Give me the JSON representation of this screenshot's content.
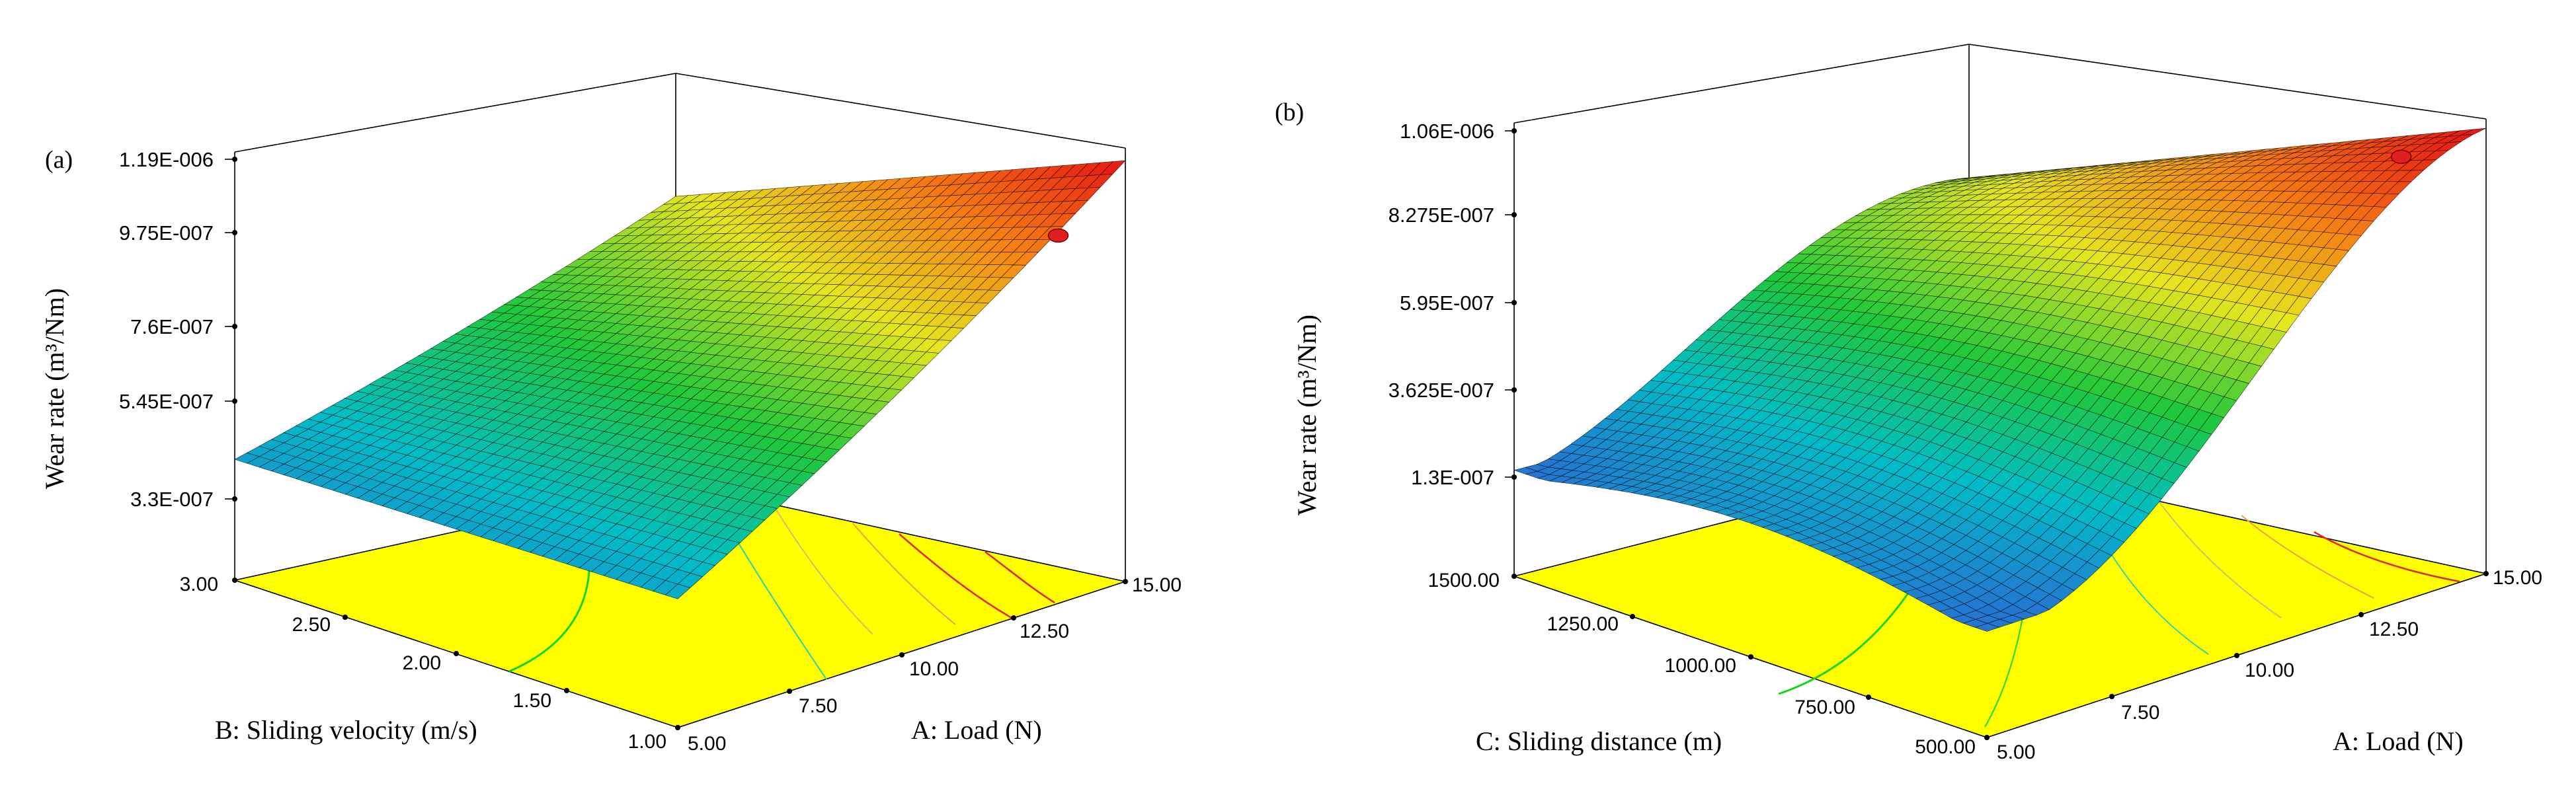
{
  "chart_data": [
    {
      "type": "surface3d",
      "panel_label": "(a)",
      "zlabel": "Wear rate (m³/Nm)",
      "xlabel": "A: Load (N)",
      "ylabel": "B: Sliding velocity (m/s)",
      "x_ticks": [
        "5.00",
        "7.50",
        "10.00",
        "12.50",
        "15.00"
      ],
      "y_ticks": [
        "1.00",
        "1.50",
        "2.00",
        "2.50",
        "3.00"
      ],
      "z_ticks": [
        "3.3E-007",
        "5.45E-007",
        "7.6E-007",
        "9.75E-007",
        "1.19E-006"
      ],
      "xlim": [
        5,
        15
      ],
      "ylim": [
        1,
        3
      ],
      "zlim": [
        3.3e-07,
        1.19e-06
      ],
      "corner_values": {
        "load_5_v_1": 4.5e-07,
        "load_15_v_1": 1.19e-06,
        "load_5_v_3": 4.3e-07,
        "load_15_v_3": 8.5e-07
      },
      "design_point": {
        "load": 13.5,
        "v": 1.0,
        "wear": 1.03e-06
      },
      "floor_color": "#ffff00"
    },
    {
      "type": "surface3d",
      "panel_label": "(b)",
      "zlabel": "Wear rate (m³/Nm)",
      "xlabel": "A: Load (N)",
      "ylabel": "C: Sliding distance (m)",
      "x_ticks": [
        "5.00",
        "7.50",
        "10.00",
        "12.50",
        "15.00"
      ],
      "y_ticks": [
        "500.00",
        "750.00",
        "1000.00",
        "1250.00",
        "1500.00"
      ],
      "z_ticks": [
        "1.3E-007",
        "3.625E-007",
        "5.95E-007",
        "8.275E-007",
        "1.06E-006"
      ],
      "xlim": [
        5,
        15
      ],
      "ylim": [
        500,
        1500
      ],
      "zlim": [
        1.3e-07,
        1.06e-06
      ],
      "corner_values": {
        "load_5_d_500": 1.3e-07,
        "load_15_d_500": 1.06e-06,
        "load_5_d_1500": 1.3e-07,
        "load_15_d_1500": 6.2e-07
      },
      "design_point": {
        "load": 13.3,
        "d": 500,
        "wear": 1.03e-06
      },
      "floor_color": "#ffff00"
    }
  ]
}
